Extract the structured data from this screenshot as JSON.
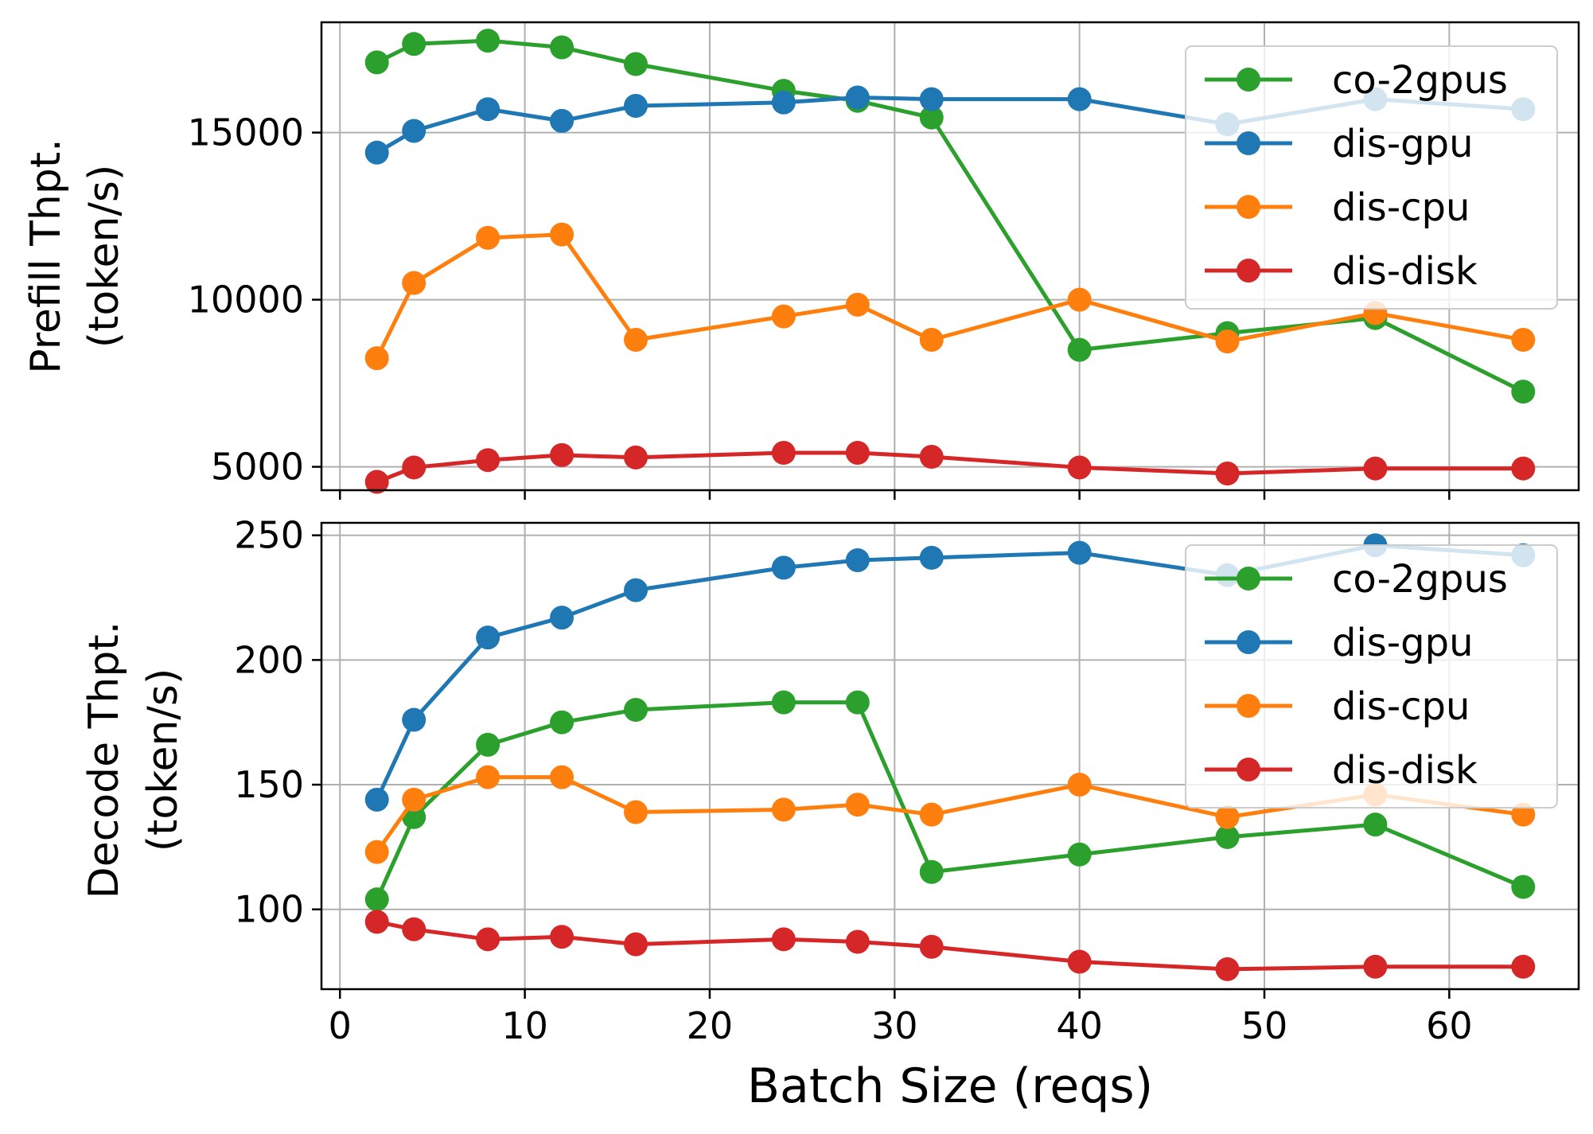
{
  "chart_data": [
    {
      "type": "line",
      "title": "",
      "xlabel": "",
      "ylabel": [
        "Prefill Thpt.",
        "(token/s)"
      ],
      "x": [
        2,
        4,
        8,
        12,
        16,
        24,
        28,
        32,
        40,
        48,
        56,
        64
      ],
      "xlim": [
        -1,
        67
      ],
      "ylim": [
        4300,
        18300
      ],
      "xticks": [
        0,
        10,
        20,
        30,
        40,
        50,
        60
      ],
      "yticks": [
        5000,
        10000,
        15000
      ],
      "ytick_labels": [
        "5000",
        "10000",
        "15000"
      ],
      "grid": true,
      "legend_position": "upper right",
      "series": [
        {
          "name": "co-2gpus",
          "color": "#2ca02c",
          "values": [
            17100,
            17650,
            17750,
            17550,
            17050,
            16250,
            15950,
            15450,
            8500,
            9000,
            9450,
            7250
          ]
        },
        {
          "name": "dis-gpu",
          "color": "#1f77b4",
          "values": [
            14400,
            15050,
            15700,
            15350,
            15800,
            15900,
            16050,
            16000,
            16000,
            15250,
            16000,
            15700
          ]
        },
        {
          "name": "dis-cpu",
          "color": "#ff7f0e",
          "values": [
            8250,
            10500,
            11850,
            11950,
            8800,
            9500,
            9850,
            8800,
            10000,
            8750,
            9600,
            8800
          ]
        },
        {
          "name": "dis-disk",
          "color": "#d62728",
          "values": [
            4550,
            4980,
            5200,
            5350,
            5280,
            5420,
            5420,
            5300,
            4980,
            4800,
            4950,
            4950
          ]
        }
      ]
    },
    {
      "type": "line",
      "title": "",
      "xlabel": "Batch Size (reqs)",
      "ylabel": [
        "Decode Thpt.",
        "(token/s)"
      ],
      "x": [
        2,
        4,
        8,
        12,
        16,
        24,
        28,
        32,
        40,
        48,
        56,
        64
      ],
      "xlim": [
        -1,
        67
      ],
      "ylim": [
        68,
        255
      ],
      "xticks": [
        0,
        10,
        20,
        30,
        40,
        50,
        60
      ],
      "xtick_labels": [
        "0",
        "10",
        "20",
        "30",
        "40",
        "50",
        "60"
      ],
      "yticks": [
        100,
        150,
        200,
        250
      ],
      "ytick_labels": [
        "100",
        "150",
        "200",
        "250"
      ],
      "grid": true,
      "legend_position": "upper right",
      "series": [
        {
          "name": "co-2gpus",
          "color": "#2ca02c",
          "values": [
            104,
            137,
            166,
            175,
            180,
            183,
            183,
            115,
            122,
            129,
            134,
            109
          ]
        },
        {
          "name": "dis-gpu",
          "color": "#1f77b4",
          "values": [
            144,
            176,
            209,
            217,
            228,
            237,
            240,
            241,
            243,
            234,
            246,
            242
          ]
        },
        {
          "name": "dis-cpu",
          "color": "#ff7f0e",
          "values": [
            123,
            144,
            153,
            153,
            139,
            140,
            142,
            138,
            150,
            137,
            146,
            138
          ]
        },
        {
          "name": "dis-disk",
          "color": "#d62728",
          "values": [
            95,
            92,
            88,
            89,
            86,
            88,
            87,
            85,
            79,
            76,
            77,
            77
          ]
        }
      ]
    }
  ]
}
